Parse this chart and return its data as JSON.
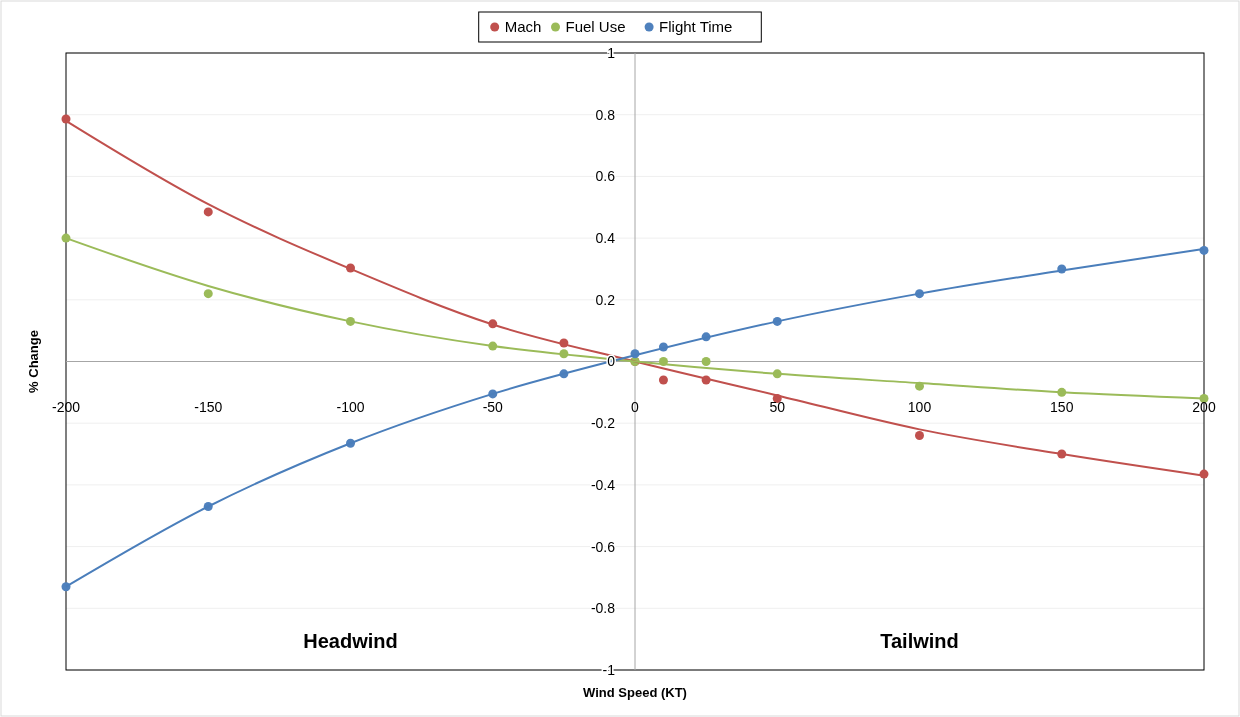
{
  "chart_data": {
    "type": "scatter",
    "xlabel": "Wind Speed (KT)",
    "ylabel": "% Change",
    "annotations": [
      "Headwind",
      "Tailwind"
    ],
    "x": [
      -200,
      -150,
      -100,
      -50,
      -25,
      0,
      10,
      25,
      50,
      100,
      150,
      200
    ],
    "xlim": [
      -200,
      200
    ],
    "xticks": [
      -200,
      -150,
      -100,
      -50,
      0,
      50,
      100,
      150,
      200
    ],
    "ylim": [
      -1,
      1
    ],
    "yticks": [
      -1,
      -0.8,
      -0.6,
      -0.4,
      -0.2,
      0,
      0.2,
      0.4,
      0.6,
      0.8,
      1
    ],
    "grid": "y",
    "legend": "top",
    "marker": "circle",
    "series": [
      {
        "name": "Mach",
        "color": "#c0504d",
        "values": [
          0.786,
          0.485,
          0.303,
          0.122,
          0.06,
          0,
          -0.06,
          -0.06,
          -0.12,
          -0.24,
          -0.3,
          -0.365
        ]
      },
      {
        "name": "Fuel Use",
        "color": "#9bbb59",
        "values": [
          0.4,
          0.22,
          0.13,
          0.05,
          0.025,
          0,
          0,
          0,
          -0.04,
          -0.08,
          -0.1,
          -0.12
        ]
      },
      {
        "name": "Flight Time",
        "color": "#4f81bd",
        "values": [
          -0.73,
          -0.47,
          -0.265,
          -0.105,
          -0.04,
          0.025,
          0.047,
          0.08,
          0.13,
          0.22,
          0.3,
          0.36
        ]
      },
      {
        "type": "line",
        "marker": "none",
        "color": "#c0504d",
        "x": [
          -200,
          -150,
          -100,
          -50,
          0,
          50,
          100,
          150,
          200
        ],
        "values": [
          0.78,
          0.51,
          0.3,
          0.12,
          0,
          -0.11,
          -0.22,
          -0.3,
          -0.37
        ]
      },
      {
        "type": "line",
        "marker": "none",
        "color": "#9bbb59",
        "x": [
          -200,
          -150,
          -100,
          -50,
          0,
          50,
          100,
          150,
          200
        ],
        "values": [
          0.4,
          0.245,
          0.13,
          0.05,
          0,
          -0.04,
          -0.07,
          -0.1,
          -0.12
        ]
      },
      {
        "type": "line",
        "marker": "none",
        "color": "#4a7ebb",
        "x": [
          -200,
          -150,
          -100,
          -50,
          0,
          50,
          100,
          150,
          200
        ],
        "values": [
          -0.73,
          -0.47,
          -0.265,
          -0.105,
          0.02,
          0.13,
          0.22,
          0.295,
          0.365
        ]
      }
    ]
  }
}
